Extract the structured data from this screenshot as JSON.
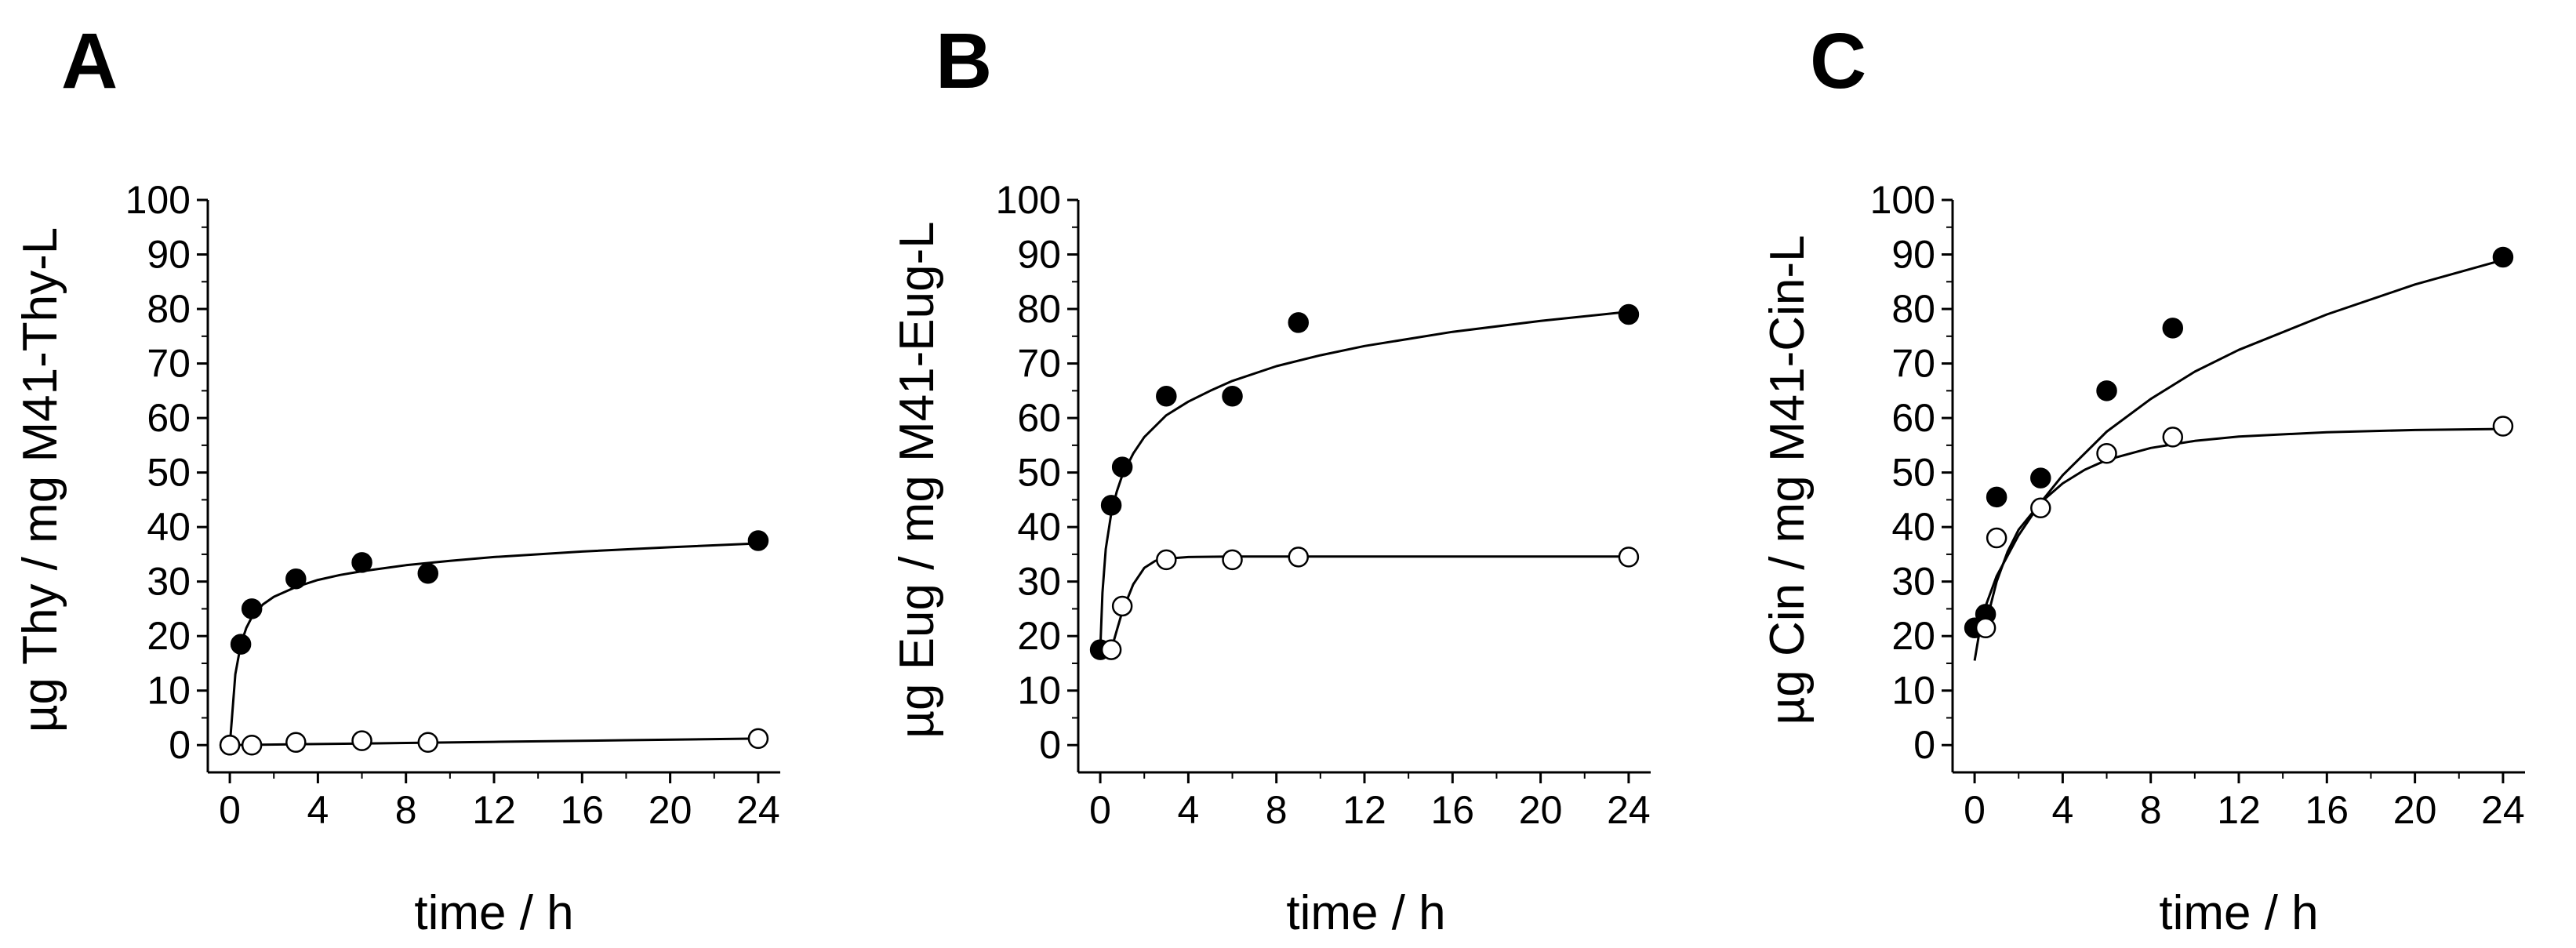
{
  "chart_data": [
    {
      "panel": "A",
      "type": "scatter",
      "xlabel": "time / h",
      "ylabel": "µg Thy / mg M41-Thy-L",
      "xlim": [
        -1,
        25
      ],
      "ylim": [
        -5,
        100
      ],
      "xticks": [
        0,
        4,
        8,
        12,
        16,
        20,
        24
      ],
      "yticks": [
        0,
        10,
        20,
        30,
        40,
        50,
        60,
        70,
        80,
        90,
        100
      ],
      "series": [
        {
          "name": "filled",
          "marker": "filled-circle",
          "points": [
            [
              0,
              0
            ],
            [
              0.5,
              18.5
            ],
            [
              1,
              25
            ],
            [
              3,
              30.5
            ],
            [
              6,
              33.5
            ],
            [
              9,
              31.5
            ],
            [
              24,
              37.5
            ]
          ],
          "fit": [
            [
              0,
              0
            ],
            [
              0.25,
              13
            ],
            [
              0.5,
              18.5
            ],
            [
              0.75,
              21.5
            ],
            [
              1,
              23.5
            ],
            [
              1.5,
              25.8
            ],
            [
              2,
              27.2
            ],
            [
              3,
              29
            ],
            [
              4,
              30.3
            ],
            [
              5,
              31.2
            ],
            [
              6,
              31.9
            ],
            [
              8,
              33
            ],
            [
              10,
              33.8
            ],
            [
              12,
              34.5
            ],
            [
              16,
              35.5
            ],
            [
              20,
              36.3
            ],
            [
              24,
              37
            ]
          ]
        },
        {
          "name": "open",
          "marker": "open-circle",
          "points": [
            [
              0,
              0
            ],
            [
              1,
              0
            ],
            [
              3,
              0.5
            ],
            [
              6,
              0.8
            ],
            [
              9,
              0.5
            ],
            [
              24,
              1.2
            ]
          ],
          "fit": [
            [
              0,
              0
            ],
            [
              6,
              0.3
            ],
            [
              12,
              0.6
            ],
            [
              18,
              0.9
            ],
            [
              24,
              1.2
            ]
          ]
        }
      ]
    },
    {
      "panel": "B",
      "type": "scatter",
      "xlabel": "time / h",
      "ylabel": "µg Eug / mg M41-Eug-L",
      "xlim": [
        -1,
        25
      ],
      "ylim": [
        -5,
        100
      ],
      "xticks": [
        0,
        4,
        8,
        12,
        16,
        20,
        24
      ],
      "yticks": [
        0,
        10,
        20,
        30,
        40,
        50,
        60,
        70,
        80,
        90,
        100
      ],
      "series": [
        {
          "name": "filled",
          "marker": "filled-circle",
          "points": [
            [
              0,
              17.5
            ],
            [
              0.5,
              44
            ],
            [
              1,
              51
            ],
            [
              3,
              64
            ],
            [
              6,
              64
            ],
            [
              9,
              77.5
            ],
            [
              24,
              79
            ]
          ],
          "fit": [
            [
              0,
              17.5
            ],
            [
              0.1,
              28
            ],
            [
              0.25,
              36
            ],
            [
              0.5,
              42.5
            ],
            [
              0.75,
              46.5
            ],
            [
              1,
              49.5
            ],
            [
              1.5,
              53.5
            ],
            [
              2,
              56.5
            ],
            [
              3,
              60.5
            ],
            [
              4,
              63
            ],
            [
              5,
              65
            ],
            [
              6,
              66.8
            ],
            [
              8,
              69.5
            ],
            [
              10,
              71.5
            ],
            [
              12,
              73.2
            ],
            [
              16,
              75.8
            ],
            [
              20,
              77.8
            ],
            [
              24,
              79.5
            ]
          ]
        },
        {
          "name": "open",
          "marker": "open-circle",
          "points": [
            [
              0.5,
              17.5
            ],
            [
              1,
              25.5
            ],
            [
              3,
              34
            ],
            [
              6,
              34
            ],
            [
              9,
              34.5
            ],
            [
              24,
              34.5
            ]
          ],
          "fit": [
            [
              0.5,
              17.5
            ],
            [
              0.75,
              21
            ],
            [
              1,
              24.5
            ],
            [
              1.5,
              29.5
            ],
            [
              2,
              32.5
            ],
            [
              2.5,
              33.8
            ],
            [
              3,
              34.2
            ],
            [
              4,
              34.5
            ],
            [
              6,
              34.6
            ],
            [
              12,
              34.6
            ],
            [
              24,
              34.6
            ]
          ]
        }
      ]
    },
    {
      "panel": "C",
      "type": "scatter",
      "xlabel": "time / h",
      "ylabel": "µg Cin / mg M41-Cin-L",
      "xlim": [
        -1,
        25
      ],
      "ylim": [
        -5,
        100
      ],
      "xticks": [
        0,
        4,
        8,
        12,
        16,
        20,
        24
      ],
      "yticks": [
        0,
        10,
        20,
        30,
        40,
        50,
        60,
        70,
        80,
        90,
        100
      ],
      "series": [
        {
          "name": "filled",
          "marker": "filled-circle",
          "points": [
            [
              0,
              21.5
            ],
            [
              0.5,
              24
            ],
            [
              1,
              45.5
            ],
            [
              3,
              49
            ],
            [
              6,
              65
            ],
            [
              9,
              76.5
            ],
            [
              24,
              89.5
            ]
          ],
          "fit": [
            [
              0,
              15.5
            ],
            [
              0.25,
              21.5
            ],
            [
              0.5,
              25.5
            ],
            [
              1,
              31
            ],
            [
              2,
              38.5
            ],
            [
              3,
              44.5
            ],
            [
              4,
              49.5
            ],
            [
              6,
              57.5
            ],
            [
              8,
              63.5
            ],
            [
              10,
              68.5
            ],
            [
              12,
              72.5
            ],
            [
              16,
              79
            ],
            [
              20,
              84.5
            ],
            [
              24,
              89
            ]
          ]
        },
        {
          "name": "open",
          "marker": "open-circle",
          "points": [
            [
              0.5,
              21.5
            ],
            [
              1,
              38
            ],
            [
              3,
              43.5
            ],
            [
              6,
              53.5
            ],
            [
              9,
              56.5
            ],
            [
              24,
              58.5
            ]
          ],
          "fit": [
            [
              0.5,
              21.5
            ],
            [
              0.75,
              26
            ],
            [
              1,
              30
            ],
            [
              1.5,
              35.5
            ],
            [
              2,
              39.5
            ],
            [
              3,
              44.5
            ],
            [
              4,
              48
            ],
            [
              5,
              50.5
            ],
            [
              6,
              52.3
            ],
            [
              8,
              54.5
            ],
            [
              10,
              55.8
            ],
            [
              12,
              56.6
            ],
            [
              16,
              57.4
            ],
            [
              20,
              57.8
            ],
            [
              24,
              58
            ]
          ]
        }
      ]
    }
  ]
}
